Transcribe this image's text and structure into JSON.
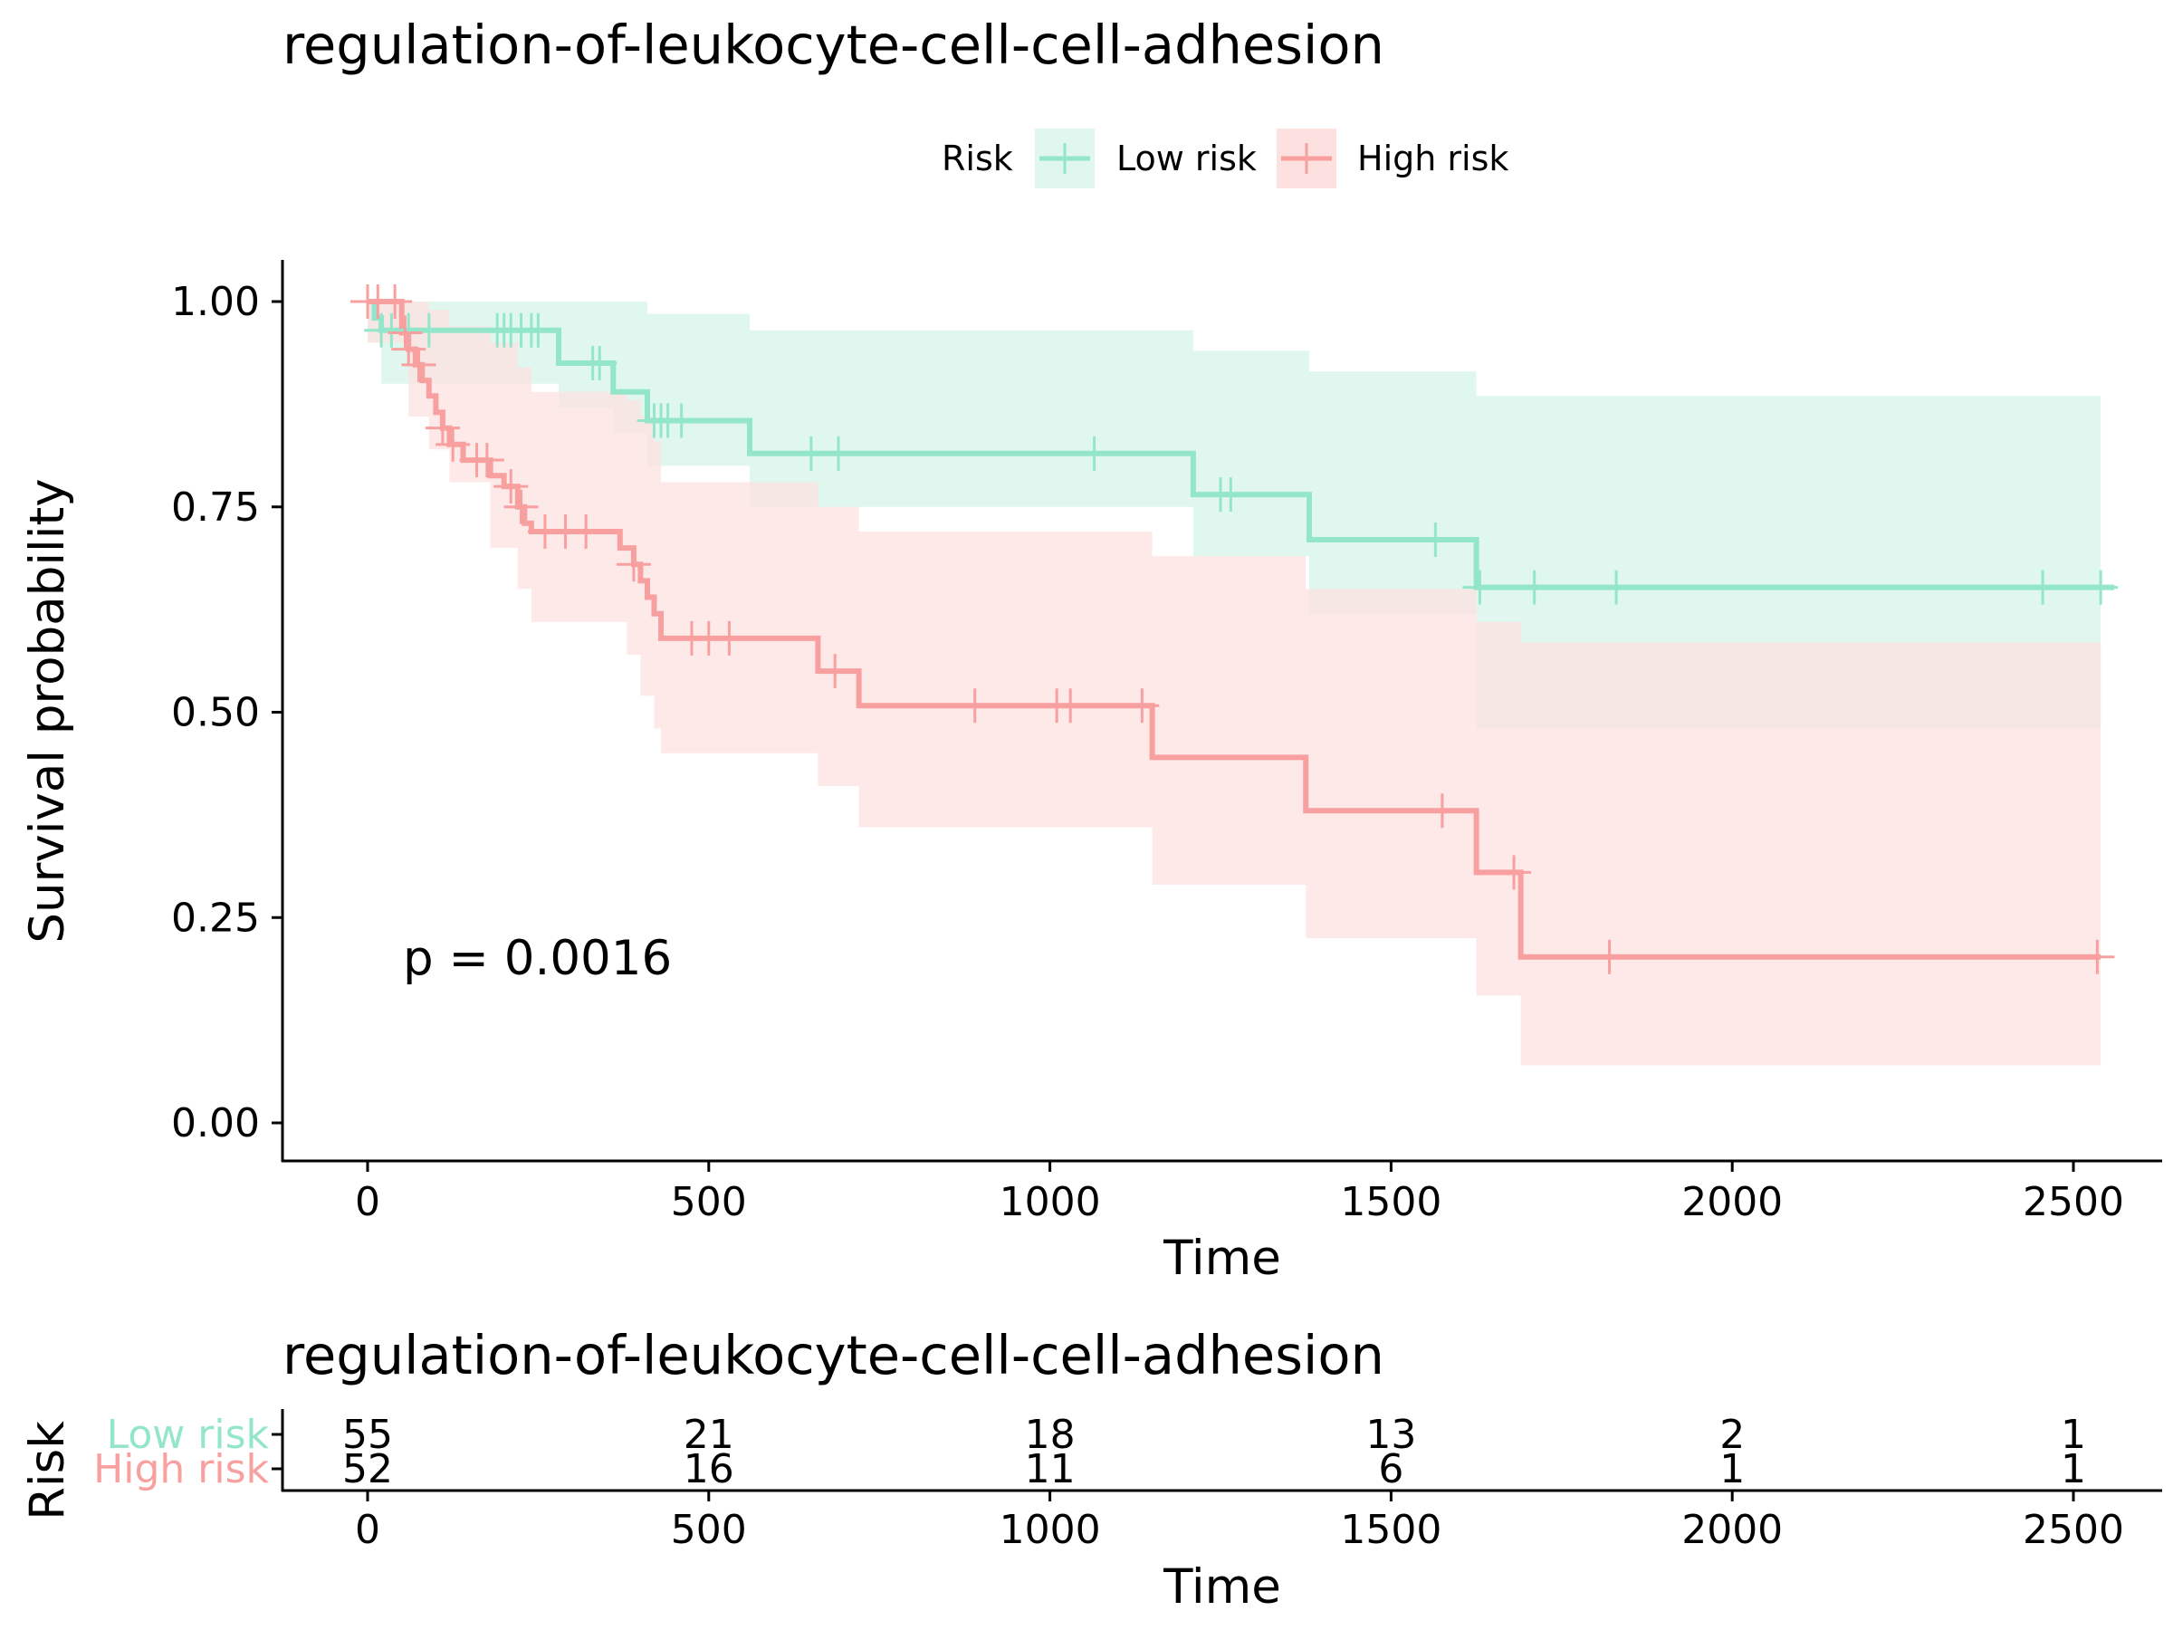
{
  "chart_data": [
    {
      "type": "line",
      "subtype": "kaplan-meier",
      "title": "regulation-of-leukocyte-cell-cell-adhesion",
      "xlabel": "Time",
      "ylabel": "Survival probability",
      "xlim": [
        -125,
        2600
      ],
      "ylim": [
        -0.05,
        1.05
      ],
      "x_ticks": [
        0,
        500,
        1000,
        1500,
        2000,
        2500
      ],
      "x_tick_labels": [
        "0",
        "500",
        "1000",
        "1500",
        "2000",
        "2500"
      ],
      "y_ticks": [
        0,
        0.25,
        0.5,
        0.75,
        1.0
      ],
      "y_tick_labels": [
        "0.00",
        "0.25",
        "0.50",
        "0.75",
        "1.00"
      ],
      "grid": false,
      "legend": {
        "title": "Risk",
        "position": "top",
        "entries": [
          "Low risk",
          "High risk"
        ]
      },
      "annotation": "p = 0.0016",
      "series": [
        {
          "name": "Low risk",
          "color": "#94E6CA",
          "band_color": "#E0F7EF",
          "steps": [
            [
              0,
              1.0
            ],
            [
              10,
              0.98
            ],
            [
              20,
              0.965
            ],
            [
              280,
              0.925
            ],
            [
              360,
              0.89
            ],
            [
              410,
              0.855
            ],
            [
              560,
              0.815
            ],
            [
              1210,
              0.765
            ],
            [
              1380,
              0.71
            ],
            [
              1625,
              0.652
            ],
            [
              2560,
              0.652
            ]
          ],
          "ci_steps": [
            [
              0,
              0.95,
              1.0
            ],
            [
              20,
              0.9,
              1.0
            ],
            [
              280,
              0.87,
              1.0
            ],
            [
              360,
              0.84,
              1.0
            ],
            [
              410,
              0.8,
              0.985
            ],
            [
              560,
              0.75,
              0.965
            ],
            [
              1210,
              0.69,
              0.94
            ],
            [
              1380,
              0.62,
              0.915
            ],
            [
              1625,
              0.48,
              0.885
            ],
            [
              2540,
              0.48,
              0.885
            ]
          ],
          "censor_times": [
            20,
            35,
            60,
            90,
            190,
            200,
            210,
            225,
            240,
            250,
            330,
            340,
            420,
            430,
            440,
            460,
            650,
            690,
            1065,
            1250,
            1265,
            1565,
            1630,
            1710,
            1830,
            2455,
            2540
          ]
        },
        {
          "name": "High risk",
          "color": "#F8A09F",
          "band_color": "#FDE1E1",
          "steps": [
            [
              0,
              1.0
            ],
            [
              50,
              0.962
            ],
            [
              60,
              0.942
            ],
            [
              70,
              0.923
            ],
            [
              80,
              0.904
            ],
            [
              90,
              0.885
            ],
            [
              100,
              0.865
            ],
            [
              110,
              0.846
            ],
            [
              120,
              0.826
            ],
            [
              140,
              0.807
            ],
            [
              180,
              0.788
            ],
            [
              200,
              0.775
            ],
            [
              220,
              0.75
            ],
            [
              230,
              0.73
            ],
            [
              240,
              0.72
            ],
            [
              370,
              0.7
            ],
            [
              390,
              0.68
            ],
            [
              400,
              0.66
            ],
            [
              410,
              0.64
            ],
            [
              420,
              0.62
            ],
            [
              430,
              0.59
            ],
            [
              660,
              0.55
            ],
            [
              720,
              0.508
            ],
            [
              1150,
              0.445
            ],
            [
              1375,
              0.38
            ],
            [
              1625,
              0.305
            ],
            [
              1690,
              0.202
            ],
            [
              2540,
              0.202
            ]
          ],
          "ci_steps": [
            [
              0,
              0.95,
              1.0
            ],
            [
              60,
              0.86,
              1.0
            ],
            [
              90,
              0.82,
              0.99
            ],
            [
              120,
              0.78,
              0.97
            ],
            [
              180,
              0.7,
              0.95
            ],
            [
              220,
              0.65,
              0.92
            ],
            [
              240,
              0.61,
              0.89
            ],
            [
              380,
              0.57,
              0.88
            ],
            [
              400,
              0.52,
              0.86
            ],
            [
              420,
              0.48,
              0.83
            ],
            [
              430,
              0.45,
              0.78
            ],
            [
              660,
              0.41,
              0.75
            ],
            [
              720,
              0.36,
              0.72
            ],
            [
              1150,
              0.29,
              0.69
            ],
            [
              1375,
              0.225,
              0.65
            ],
            [
              1625,
              0.155,
              0.61
            ],
            [
              1690,
              0.07,
              0.585
            ],
            [
              2540,
              0.07,
              0.585
            ]
          ],
          "censor_times": [
            0,
            15,
            40,
            55,
            60,
            75,
            110,
            125,
            160,
            175,
            210,
            225,
            260,
            290,
            320,
            390,
            475,
            500,
            530,
            685,
            890,
            1010,
            1030,
            1135,
            1575,
            1680,
            1820,
            2535
          ]
        }
      ]
    },
    {
      "type": "table",
      "title": "regulation-of-leukocyte-cell-cell-adhesion",
      "ylabel": "Risk",
      "xlabel": "Time",
      "x_ticks": [
        0,
        500,
        1000,
        1500,
        2000,
        2500
      ],
      "x_tick_labels": [
        "0",
        "500",
        "1000",
        "1500",
        "2000",
        "2500"
      ],
      "rows": [
        {
          "label": "Low risk",
          "color": "#94E6CA",
          "values": [
            55,
            21,
            18,
            13,
            2,
            1
          ]
        },
        {
          "label": "High risk",
          "color": "#F8A09F",
          "values": [
            52,
            16,
            11,
            6,
            1,
            1
          ]
        }
      ]
    }
  ]
}
